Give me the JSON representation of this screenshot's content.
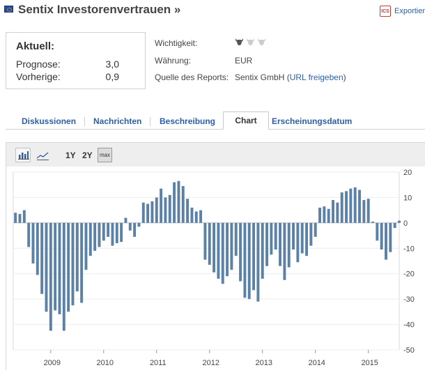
{
  "header": {
    "title": "Sentix Investorenvertrauen »",
    "export_icon_text": "ICS",
    "export_label": "Exportier"
  },
  "current": {
    "heading": "Aktuell:",
    "forecast_label": "Prognose:",
    "forecast_value": "3,0",
    "previous_label": "Vorherige:",
    "previous_value": "0,9"
  },
  "info": {
    "importance_label": "Wichtigkeit:",
    "importance_level": 1,
    "importance_max": 3,
    "currency_label": "Währung:",
    "currency_value": "EUR",
    "source_label": "Quelle des Reports:",
    "source_value": "Sentix GmbH (",
    "source_link": "URL freigeben",
    "source_close": ")"
  },
  "tabs": [
    {
      "label": "Diskussionen",
      "active": false
    },
    {
      "label": "Nachrichten",
      "active": false
    },
    {
      "label": "Beschreibung",
      "active": false
    },
    {
      "label": "Chart",
      "active": true
    },
    {
      "label": "Erscheinungsdatum",
      "active": false
    }
  ],
  "toolbar": {
    "bar_view_icon": "bar-chart-icon",
    "line_view_icon": "line-chart-icon",
    "range_1y": "1Y",
    "range_2y": "2Y",
    "range_max": "max"
  },
  "colors": {
    "bar": "#5b82a6",
    "link": "#2a5fa8",
    "grid": "#d8d8d8",
    "bull_active": "#555555",
    "bull_inactive": "#cccccc"
  },
  "chart_data": {
    "type": "bar",
    "title": "",
    "xlabel": "",
    "ylabel": "",
    "ylim": [
      -50,
      20
    ],
    "yticks": [
      20,
      10,
      0,
      -10,
      -20,
      -30,
      -40,
      -50
    ],
    "x_tick_labels": [
      "2009",
      "2010",
      "2011",
      "2012",
      "2013",
      "2014",
      "2015"
    ],
    "series": [
      {
        "name": "Sentix Investorenvertrauen",
        "start": "2008-05",
        "values": [
          4,
          3.5,
          5,
          -9.5,
          -16,
          -20.5,
          -28,
          -35,
          -42.5,
          -34.5,
          -36,
          -42.5,
          -35,
          -32.5,
          -27,
          -31.5,
          -18.5,
          -13,
          -11,
          -9.5,
          -7,
          -5.5,
          -9,
          -8,
          -7.5,
          2,
          -3,
          -5.5,
          -1.5,
          8,
          7.5,
          8.5,
          10,
          13.5,
          10,
          11,
          16,
          16.5,
          14.5,
          9.5,
          6,
          4.5,
          5,
          -14.5,
          -16.5,
          -19.5,
          -22,
          -24,
          -21,
          -18.5,
          -13,
          -23,
          -29.5,
          -30,
          -26.5,
          -31,
          -22,
          -17,
          -12.5,
          -10.5,
          -17,
          -22.5,
          -17.5,
          -10.5,
          -15.5,
          -12,
          -13,
          -9,
          -5.5,
          6,
          6.5,
          5.5,
          9,
          8,
          12,
          12.5,
          13.5,
          14,
          13,
          9,
          9.5,
          0.5,
          -7,
          -10.5,
          -14.5,
          -11.5,
          -2,
          0.9
        ]
      }
    ]
  }
}
